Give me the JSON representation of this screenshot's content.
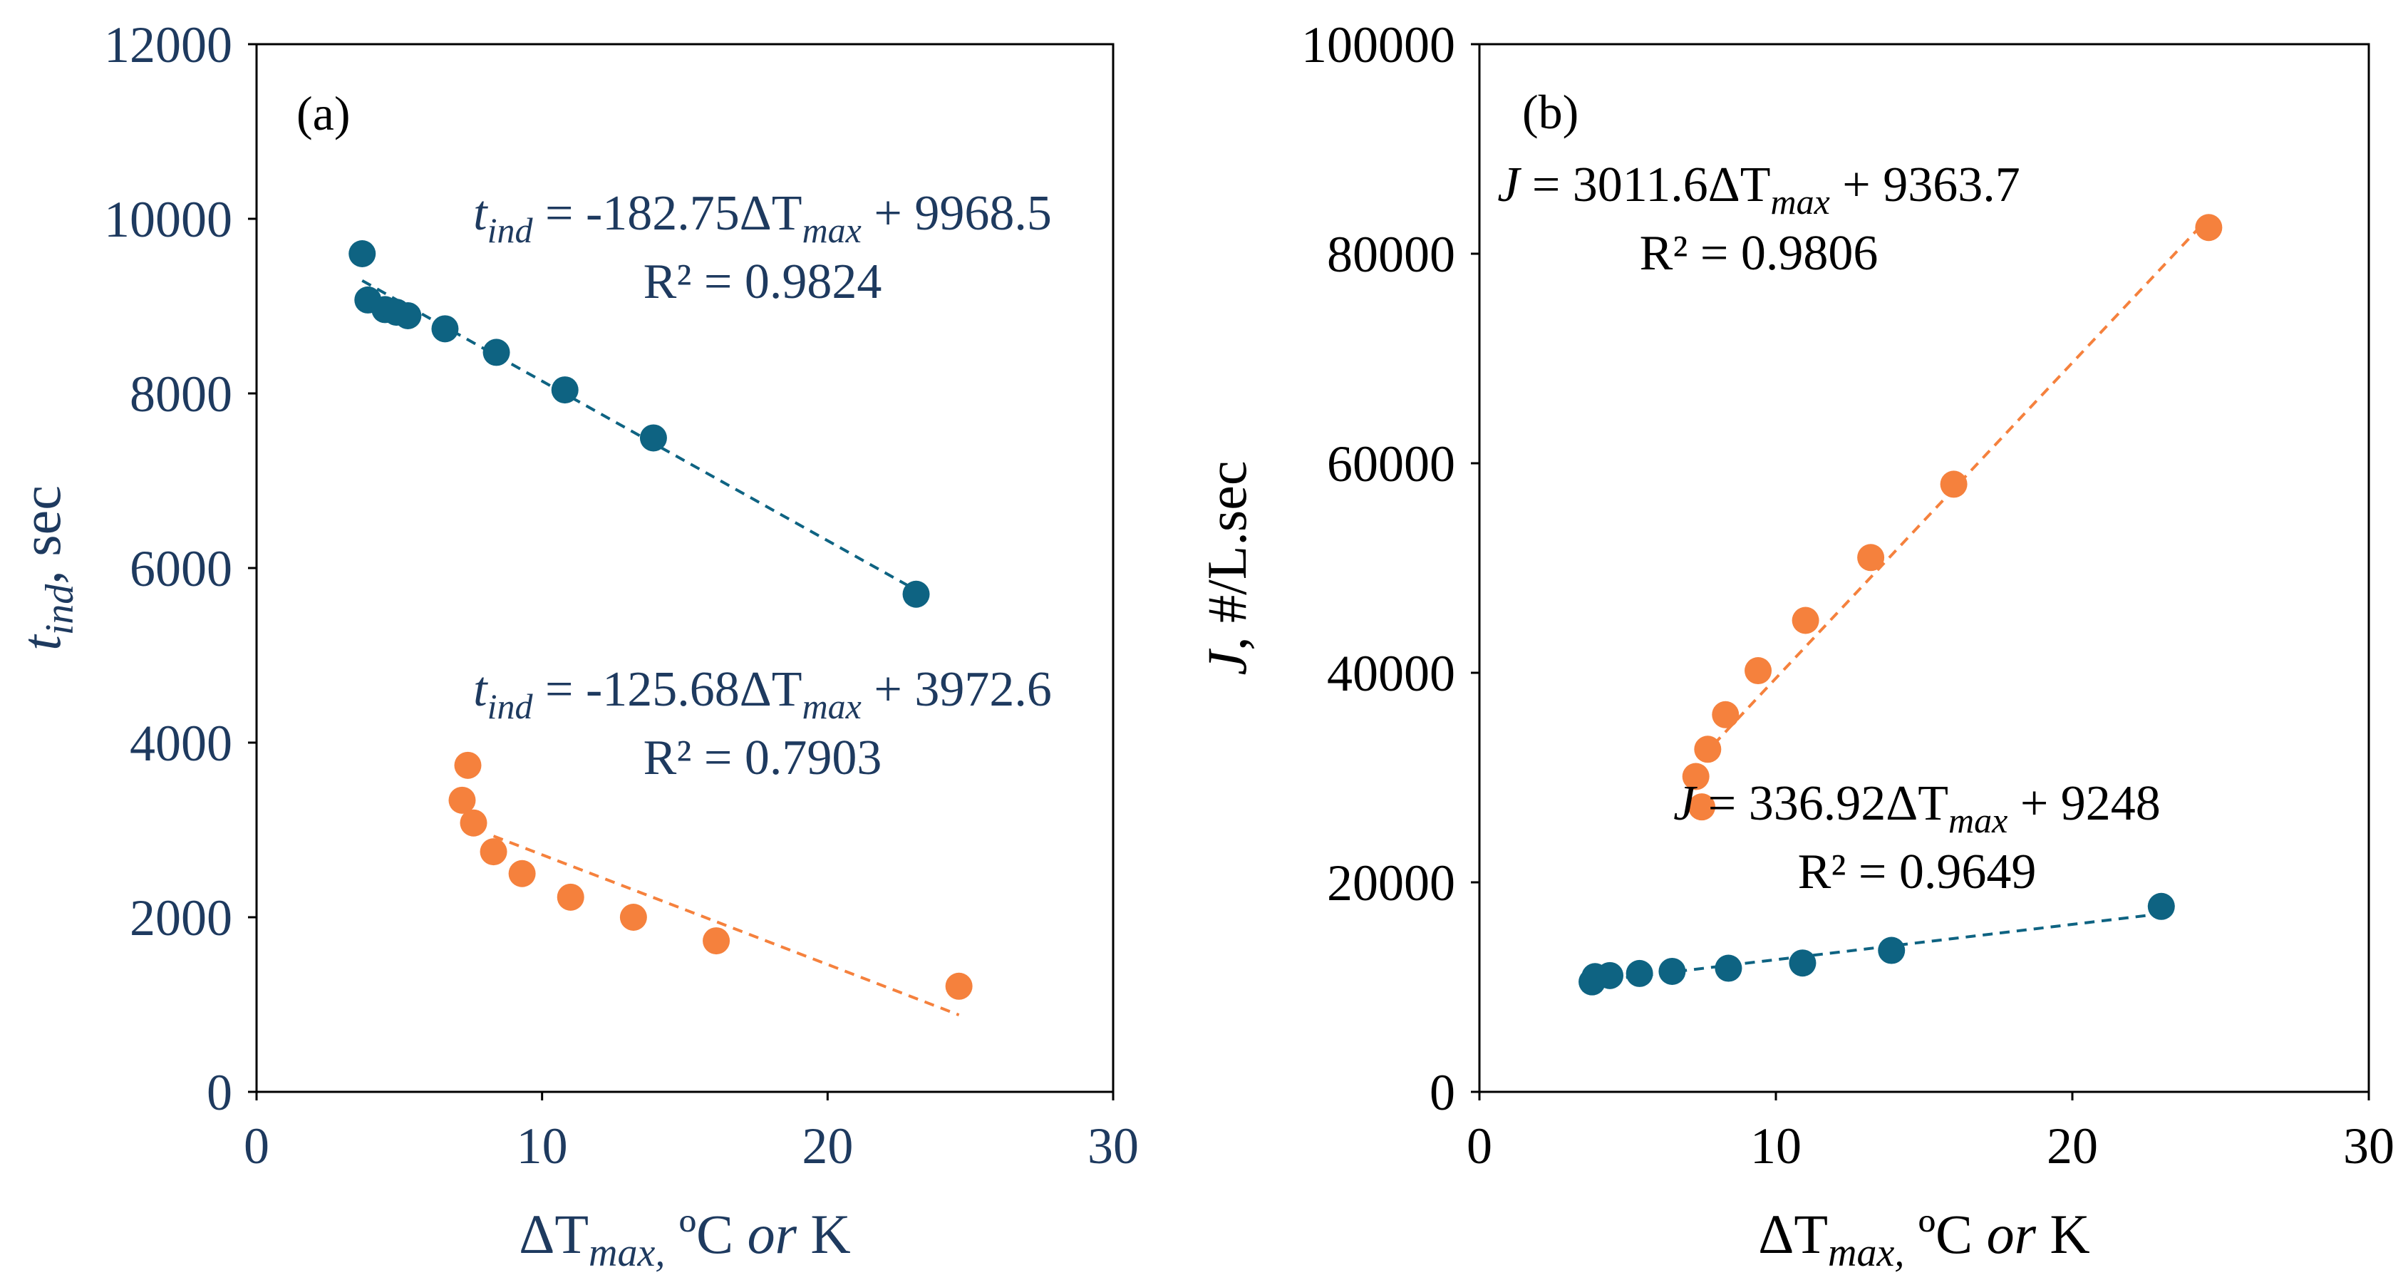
{
  "chart_data": [
    {
      "panel_label": "(a)",
      "type": "scatter",
      "xlabel": {
        "delta": "ΔT",
        "sub": "max,",
        "rest": " ºC ",
        "or": "or",
        "unit": " K"
      },
      "ylabel": {
        "var": "t",
        "sub": "ind",
        "unit": ", sec"
      },
      "xlim": [
        0,
        30
      ],
      "ylim": [
        0,
        12000
      ],
      "xticks": [
        "0",
        "10",
        "20",
        "30"
      ],
      "yticks": [
        "0",
        "2000",
        "4000",
        "6000",
        "8000",
        "10000",
        "12000"
      ],
      "grid": false,
      "series": [
        {
          "name": "series-blue",
          "color": "#0e6382",
          "points": [
            [
              3.7,
              9600
            ],
            [
              3.9,
              9070
            ],
            [
              4.5,
              8960
            ],
            [
              4.9,
              8930
            ],
            [
              5.3,
              8890
            ],
            [
              6.6,
              8740
            ],
            [
              8.4,
              8470
            ],
            [
              10.8,
              8040
            ],
            [
              13.9,
              7490
            ],
            [
              23.1,
              5700
            ]
          ],
          "trendline": {
            "x": [
              3.7,
              23.1
            ],
            "slope": -182.75,
            "intercept": 9968.5
          },
          "equation": {
            "var": "t",
            "sub": "ind",
            "body": " = -182.75ΔT",
            "xsub": "max",
            "tail": " + 9968.5",
            "r2": "R² = 0.9824"
          }
        },
        {
          "name": "series-orange",
          "color": "#f5813d",
          "points": [
            [
              7.4,
              3740
            ],
            [
              7.2,
              3340
            ],
            [
              7.6,
              3080
            ],
            [
              8.3,
              2750
            ],
            [
              9.3,
              2500
            ],
            [
              11.0,
              2230
            ],
            [
              13.2,
              2000
            ],
            [
              16.1,
              1730
            ],
            [
              24.6,
              1210
            ]
          ],
          "trendline": {
            "x": [
              8.3,
              24.6
            ],
            "slope": -125.68,
            "intercept": 3972.6
          },
          "equation": {
            "var": "t",
            "sub": "ind",
            "body": " = -125.68ΔT",
            "xsub": "max",
            "tail": " + 3972.6",
            "r2": "R² = 0.7903"
          }
        }
      ]
    },
    {
      "panel_label": "(b)",
      "type": "scatter",
      "xlabel": {
        "delta": "ΔT",
        "sub": "max,",
        "rest": " ºC ",
        "or": "or",
        "unit": " K"
      },
      "ylabel": {
        "var": "J",
        "unit": ", #/L.sec"
      },
      "xlim": [
        0,
        30
      ],
      "ylim": [
        0,
        100000
      ],
      "xticks": [
        "0",
        "10",
        "20",
        "30"
      ],
      "yticks": [
        "0",
        "20000",
        "40000",
        "60000",
        "80000",
        "100000"
      ],
      "grid": false,
      "series": [
        {
          "name": "series-orange",
          "color": "#f5813d",
          "points": [
            [
              7.5,
              27200
            ],
            [
              7.3,
              30100
            ],
            [
              7.7,
              32700
            ],
            [
              8.3,
              36000
            ],
            [
              9.4,
              40200
            ],
            [
              11.0,
              45000
            ],
            [
              13.2,
              51000
            ],
            [
              16.0,
              58000
            ],
            [
              24.6,
              82500
            ]
          ],
          "trendline": {
            "x": [
              7.5,
              24.6
            ],
            "slope": 3011.6,
            "intercept": 9363.7
          },
          "equation": {
            "var": "J",
            "sub": "",
            "body": " = 3011.6ΔT",
            "xsub": "max",
            "tail": " + 9363.7",
            "r2": "R² = 0.9806"
          }
        },
        {
          "name": "series-blue",
          "color": "#0e6382",
          "points": [
            [
              3.8,
              10500
            ],
            [
              3.9,
              11000
            ],
            [
              4.4,
              11100
            ],
            [
              5.4,
              11300
            ],
            [
              6.5,
              11500
            ],
            [
              8.4,
              11800
            ],
            [
              10.9,
              12300
            ],
            [
              13.9,
              13500
            ],
            [
              23.0,
              17700
            ]
          ],
          "trendline": {
            "x": [
              3.8,
              23.0
            ],
            "slope": 336.92,
            "intercept": 9248
          },
          "equation": {
            "var": "J",
            "sub": "",
            "body": " = 336.92ΔT",
            "xsub": "max",
            "tail": " + 9248",
            "r2": "R² = 0.9649"
          }
        }
      ]
    }
  ]
}
